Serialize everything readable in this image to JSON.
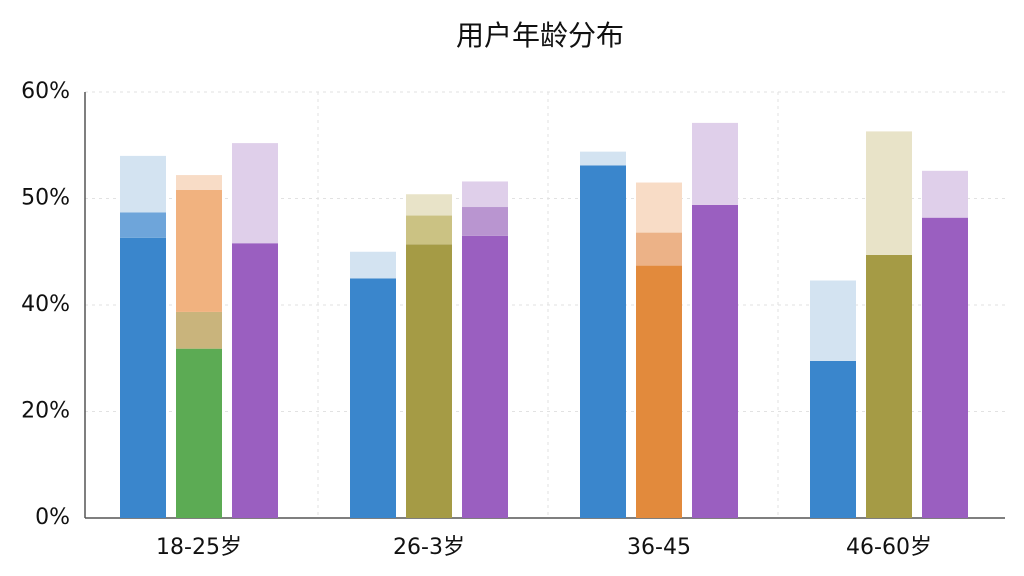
{
  "chart_data": {
    "type": "stacked-bar",
    "title": "用户年龄分布",
    "categories": [
      "18-25岁",
      "26-3岁",
      "36-45",
      "46-60岁"
    ],
    "yticks": [
      {
        "value": 0,
        "label": "0%"
      },
      {
        "value": 20,
        "label": "20%"
      },
      {
        "value": 40,
        "label": "40%"
      },
      {
        "value": 50,
        "label": "50%"
      },
      {
        "value": 60,
        "label": "60%"
      }
    ],
    "ylim": [
      0,
      60
    ],
    "grid": true,
    "groups": [
      {
        "bars": [
          {
            "segments": [
              {
                "value": 46.3,
                "color": "#3a86cc"
              },
              {
                "value": 2.4,
                "color": "#6ea5da"
              },
              {
                "value": 5.3,
                "color": "#d3e3f1"
              }
            ]
          },
          {
            "segments": [
              {
                "value": 31.8,
                "color": "#5cab54"
              },
              {
                "value": 6.9,
                "color": "#c9b47c"
              },
              {
                "value": 12.1,
                "color": "#f1b27f"
              },
              {
                "value": 1.4,
                "color": "#f8dcc6"
              }
            ]
          },
          {
            "segments": [
              {
                "value": 45.8,
                "color": "#9a5fc0"
              },
              {
                "value": 9.4,
                "color": "#dfcfea"
              }
            ]
          }
        ]
      },
      {
        "bars": [
          {
            "segments": [
              {
                "value": 42.5,
                "color": "#3a86cc"
              },
              {
                "value": 2.5,
                "color": "#d3e3f1"
              }
            ]
          },
          {
            "segments": [
              {
                "value": 45.7,
                "color": "#a59b45"
              },
              {
                "value": 2.7,
                "color": "#cbc283"
              },
              {
                "value": 2.0,
                "color": "#e8e3c8"
              }
            ]
          },
          {
            "segments": [
              {
                "value": 46.5,
                "color": "#9a5fc0"
              },
              {
                "value": 2.7,
                "color": "#b995d0"
              },
              {
                "value": 2.4,
                "color": "#dfcfea"
              }
            ]
          }
        ]
      },
      {
        "bars": [
          {
            "segments": [
              {
                "value": 53.1,
                "color": "#3a86cc"
              },
              {
                "value": 1.3,
                "color": "#d3e3f1"
              }
            ]
          },
          {
            "segments": [
              {
                "value": 43.7,
                "color": "#e28a3c"
              },
              {
                "value": 3.1,
                "color": "#ecb287"
              },
              {
                "value": 4.7,
                "color": "#f8dcc6"
              }
            ]
          },
          {
            "segments": [
              {
                "value": 49.4,
                "color": "#9a5fc0"
              },
              {
                "value": 7.7,
                "color": "#dfcfea"
              }
            ]
          }
        ]
      },
      {
        "bars": [
          {
            "segments": [
              {
                "value": 29.5,
                "color": "#3a86cc"
              },
              {
                "value": 12.8,
                "color": "#d3e3f1"
              }
            ]
          },
          {
            "segments": [
              {
                "value": 44.7,
                "color": "#a59b45"
              },
              {
                "value": 11.6,
                "color": "#e8e3c8"
              }
            ]
          },
          {
            "segments": [
              {
                "value": 48.2,
                "color": "#9a5fc0"
              },
              {
                "value": 4.4,
                "color": "#dfcfea"
              }
            ]
          }
        ]
      }
    ]
  }
}
